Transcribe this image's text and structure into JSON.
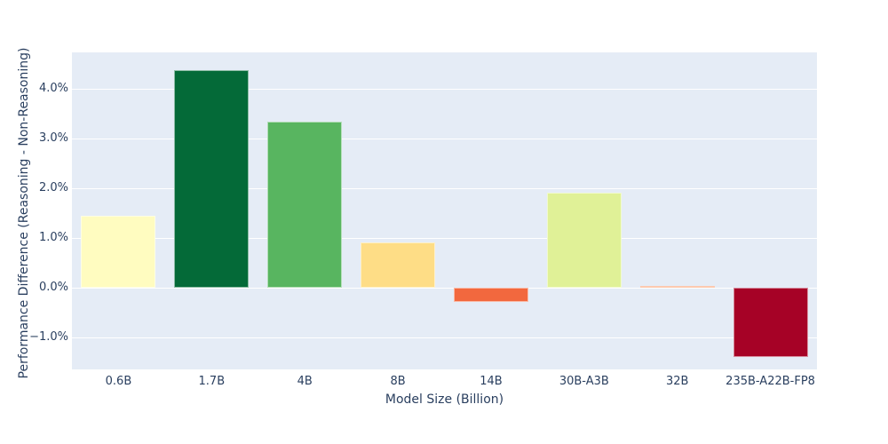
{
  "chart_data": {
    "type": "bar",
    "title": "",
    "xlabel": "Model Size (Billion)",
    "ylabel": "Performance Difference (Reasoning - Non-Reasoning)",
    "categories": [
      "0.6B",
      "1.7B",
      "4B",
      "8B",
      "14B",
      "30B-A3B",
      "32B",
      "235B-A22B-FP8"
    ],
    "values": [
      1.45,
      4.37,
      3.33,
      0.92,
      -0.29,
      1.91,
      0.03,
      -1.39
    ],
    "value_unit": "%",
    "bar_colors": [
      "#fffcc0",
      "#046a38",
      "#58b560",
      "#fedd86",
      "#f2683e",
      "#e0f197",
      "#f8884f",
      "#a60226"
    ],
    "yticks": {
      "values": [
        4,
        3,
        2,
        1,
        0,
        -1
      ],
      "labels": [
        "4.0%",
        "3.0%",
        "2.0%",
        "1.0%",
        "0.0%",
        "−1.0%"
      ]
    },
    "ylim": [
      -1.64,
      4.73
    ],
    "grid": true,
    "legend": "none",
    "colors": {
      "plot_background": "#e5ecf6",
      "gridline": "#ffffff",
      "text": "#2a3f5f",
      "figure_background": "#ffffff"
    }
  }
}
